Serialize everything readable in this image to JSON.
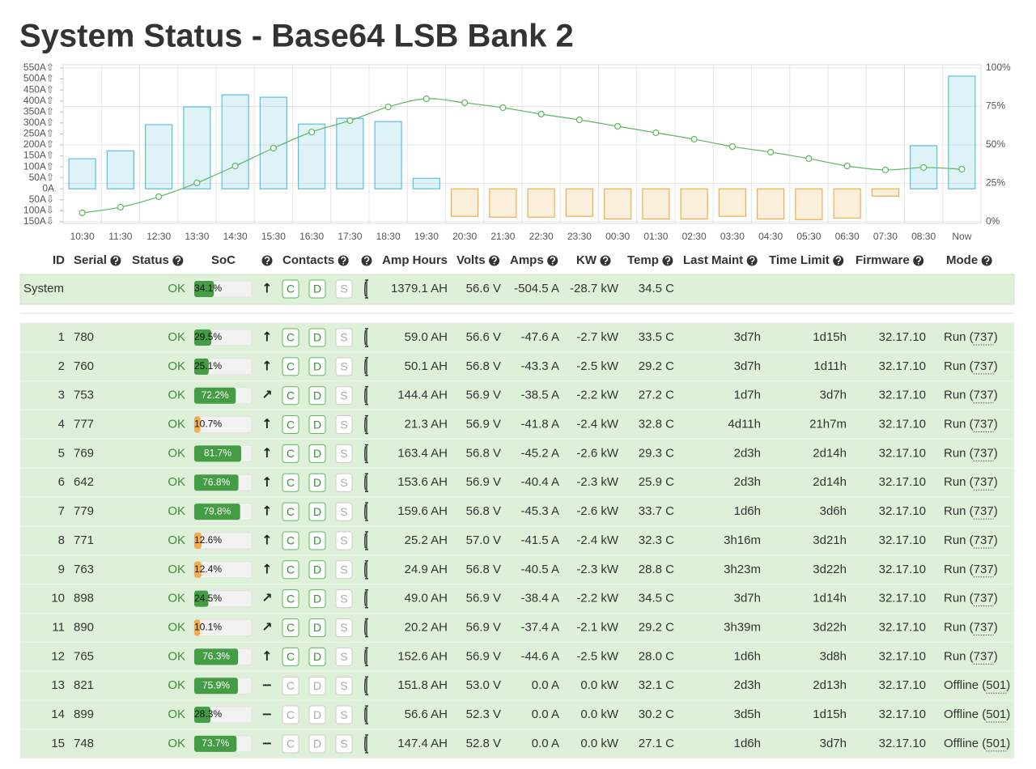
{
  "header": {
    "title": "System Status - Base64 LSB Bank 2"
  },
  "chart_data": {
    "type": "bar",
    "categories": [
      "10:30",
      "11:30",
      "12:30",
      "13:30",
      "14:30",
      "15:30",
      "16:30",
      "17:30",
      "18:30",
      "19:30",
      "20:30",
      "21:30",
      "22:30",
      "23:30",
      "00:30",
      "01:30",
      "02:30",
      "03:30",
      "04:30",
      "05:30",
      "06:30",
      "07:30",
      "08:30",
      "Now"
    ],
    "series": [
      {
        "type": "bar",
        "color": "#5bc0de",
        "negative_color": "#f0ad4e",
        "values": [
          137,
          173,
          292,
          373,
          428,
          417,
          295,
          321,
          306,
          48,
          -125,
          -129,
          -129,
          -125,
          -137,
          -137,
          -137,
          -125,
          -137,
          -140,
          -133,
          -33,
          196,
          513
        ]
      },
      {
        "type": "line",
        "axis": "y2",
        "color": "#5cb85c",
        "values": [
          5.8,
          9.5,
          16.3,
          25.3,
          36.3,
          47.9,
          58.4,
          65.8,
          74.7,
          80,
          77.4,
          74.2,
          70,
          66.3,
          62.1,
          57.9,
          53.7,
          48.9,
          45.3,
          41.1,
          36.3,
          33.7,
          35.3,
          34.2
        ]
      }
    ],
    "ylim": [
      -150,
      550
    ],
    "yticks": [
      {
        "value": 550,
        "label": "550A⇧"
      },
      {
        "value": 500,
        "label": "500A⇧"
      },
      {
        "value": 450,
        "label": "450A⇧"
      },
      {
        "value": 400,
        "label": "400A⇧"
      },
      {
        "value": 350,
        "label": "350A⇧"
      },
      {
        "value": 300,
        "label": "300A⇧"
      },
      {
        "value": 250,
        "label": "250A⇧"
      },
      {
        "value": 200,
        "label": "200A⇧"
      },
      {
        "value": 150,
        "label": "150A⇧"
      },
      {
        "value": 100,
        "label": "100A⇧"
      },
      {
        "value": 50,
        "label": "50A⇧"
      },
      {
        "value": 0,
        "label": "0A"
      },
      {
        "value": -50,
        "label": "50A⇩"
      },
      {
        "value": -100,
        "label": "100A⇩"
      },
      {
        "value": -150,
        "label": "150A⇩"
      }
    ],
    "y2lim": [
      0,
      100
    ],
    "y2ticks": [
      {
        "value": 0,
        "label": "0%"
      },
      {
        "value": 25,
        "label": "25%"
      },
      {
        "value": 50,
        "label": "50%"
      },
      {
        "value": 75,
        "label": "75%"
      },
      {
        "value": 100,
        "label": "100%"
      }
    ],
    "grid": true
  },
  "table": {
    "columns": [
      "ID",
      "Serial",
      "Status",
      "SoC",
      "Contacts",
      "Amp Hours",
      "Volts",
      "Amps",
      "KW",
      "Temp",
      "Last Maint",
      "Time Limit",
      "Firmware",
      "Mode"
    ],
    "contact_labels": [
      "C",
      "D",
      "S"
    ],
    "system": {
      "name": "System",
      "status": "OK",
      "soc": 34.1,
      "soc_label": "34.1%",
      "soc_color": "#449d44",
      "trend": "↑",
      "contacts_enabled": true,
      "amp_hours": "1379.1 AH",
      "volts": "56.6 V",
      "amps": "-504.5 A",
      "kw": "-28.7 kW",
      "temp": "34.5 C"
    },
    "rows": [
      {
        "id": "1",
        "serial": "780",
        "status": "OK",
        "soc": 29.5,
        "soc_label": "29.5%",
        "soc_color": "#449d44",
        "trend": "↑",
        "contacts_enabled": true,
        "amp_hours": "59.0 AH",
        "volts": "56.6 V",
        "amps": "-47.6 A",
        "kw": "-2.7 kW",
        "temp": "33.5 C",
        "last_maint": "3d7h",
        "time_limit": "1d15h",
        "firmware": "32.17.10",
        "mode": "Run (737)"
      },
      {
        "id": "2",
        "serial": "760",
        "status": "OK",
        "soc": 25.1,
        "soc_label": "25.1%",
        "soc_color": "#449d44",
        "trend": "↑",
        "contacts_enabled": true,
        "amp_hours": "50.1 AH",
        "volts": "56.8 V",
        "amps": "-43.3 A",
        "kw": "-2.5 kW",
        "temp": "29.2 C",
        "last_maint": "3d7h",
        "time_limit": "1d11h",
        "firmware": "32.17.10",
        "mode": "Run (737)"
      },
      {
        "id": "3",
        "serial": "753",
        "status": "OK",
        "soc": 72.2,
        "soc_label": "72.2%",
        "soc_color": "#449d44",
        "trend": "↗",
        "contacts_enabled": true,
        "amp_hours": "144.4 AH",
        "volts": "56.9 V",
        "amps": "-38.5 A",
        "kw": "-2.2 kW",
        "temp": "27.2 C",
        "last_maint": "1d7h",
        "time_limit": "3d7h",
        "firmware": "32.17.10",
        "mode": "Run (737)"
      },
      {
        "id": "4",
        "serial": "777",
        "status": "OK",
        "soc": 10.7,
        "soc_label": "10.7%",
        "soc_color": "#f0ad4e",
        "trend": "↑",
        "contacts_enabled": true,
        "amp_hours": "21.3 AH",
        "volts": "56.9 V",
        "amps": "-41.8 A",
        "kw": "-2.4 kW",
        "temp": "32.8 C",
        "last_maint": "4d11h",
        "time_limit": "21h7m",
        "firmware": "32.17.10",
        "mode": "Run (737)"
      },
      {
        "id": "5",
        "serial": "769",
        "status": "OK",
        "soc": 81.7,
        "soc_label": "81.7%",
        "soc_color": "#449d44",
        "trend": "↑",
        "contacts_enabled": true,
        "amp_hours": "163.4 AH",
        "volts": "56.8 V",
        "amps": "-45.2 A",
        "kw": "-2.6 kW",
        "temp": "29.3 C",
        "last_maint": "2d3h",
        "time_limit": "2d14h",
        "firmware": "32.17.10",
        "mode": "Run (737)"
      },
      {
        "id": "6",
        "serial": "642",
        "status": "OK",
        "soc": 76.8,
        "soc_label": "76.8%",
        "soc_color": "#449d44",
        "trend": "↑",
        "contacts_enabled": true,
        "amp_hours": "153.6 AH",
        "volts": "56.9 V",
        "amps": "-40.4 A",
        "kw": "-2.3 kW",
        "temp": "25.9 C",
        "last_maint": "2d3h",
        "time_limit": "2d14h",
        "firmware": "32.17.10",
        "mode": "Run (737)"
      },
      {
        "id": "7",
        "serial": "779",
        "status": "OK",
        "soc": 79.8,
        "soc_label": "79.8%",
        "soc_color": "#449d44",
        "trend": "↑",
        "contacts_enabled": true,
        "amp_hours": "159.6 AH",
        "volts": "56.8 V",
        "amps": "-45.3 A",
        "kw": "-2.6 kW",
        "temp": "33.7 C",
        "last_maint": "1d6h",
        "time_limit": "3d6h",
        "firmware": "32.17.10",
        "mode": "Run (737)"
      },
      {
        "id": "8",
        "serial": "771",
        "status": "OK",
        "soc": 12.6,
        "soc_label": "12.6%",
        "soc_color": "#f0ad4e",
        "trend": "↑",
        "contacts_enabled": true,
        "amp_hours": "25.2 AH",
        "volts": "57.0 V",
        "amps": "-41.5 A",
        "kw": "-2.4 kW",
        "temp": "32.3 C",
        "last_maint": "3h16m",
        "time_limit": "3d21h",
        "firmware": "32.17.10",
        "mode": "Run (737)"
      },
      {
        "id": "9",
        "serial": "763",
        "status": "OK",
        "soc": 12.4,
        "soc_label": "12.4%",
        "soc_color": "#f0ad4e",
        "trend": "↑",
        "contacts_enabled": true,
        "amp_hours": "24.9 AH",
        "volts": "56.8 V",
        "amps": "-40.5 A",
        "kw": "-2.3 kW",
        "temp": "28.8 C",
        "last_maint": "3h23m",
        "time_limit": "3d22h",
        "firmware": "32.17.10",
        "mode": "Run (737)"
      },
      {
        "id": "10",
        "serial": "898",
        "status": "OK",
        "soc": 24.5,
        "soc_label": "24.5%",
        "soc_color": "#449d44",
        "trend": "↗",
        "contacts_enabled": true,
        "amp_hours": "49.0 AH",
        "volts": "56.9 V",
        "amps": "-38.4 A",
        "kw": "-2.2 kW",
        "temp": "34.5 C",
        "last_maint": "3d7h",
        "time_limit": "1d14h",
        "firmware": "32.17.10",
        "mode": "Run (737)"
      },
      {
        "id": "11",
        "serial": "890",
        "status": "OK",
        "soc": 10.1,
        "soc_label": "10.1%",
        "soc_color": "#f0ad4e",
        "trend": "↗",
        "contacts_enabled": true,
        "amp_hours": "20.2 AH",
        "volts": "56.9 V",
        "amps": "-37.4 A",
        "kw": "-2.1 kW",
        "temp": "29.2 C",
        "last_maint": "3h39m",
        "time_limit": "3d22h",
        "firmware": "32.17.10",
        "mode": "Run (737)"
      },
      {
        "id": "12",
        "serial": "765",
        "status": "OK",
        "soc": 76.3,
        "soc_label": "76.3%",
        "soc_color": "#449d44",
        "trend": "↑",
        "contacts_enabled": true,
        "amp_hours": "152.6 AH",
        "volts": "56.9 V",
        "amps": "-44.6 A",
        "kw": "-2.5 kW",
        "temp": "28.0 C",
        "last_maint": "1d6h",
        "time_limit": "3d8h",
        "firmware": "32.17.10",
        "mode": "Run (737)"
      },
      {
        "id": "13",
        "serial": "821",
        "status": "OK",
        "soc": 75.9,
        "soc_label": "75.9%",
        "soc_color": "#449d44",
        "trend": "−",
        "contacts_enabled": false,
        "amp_hours": "151.8 AH",
        "volts": "53.0 V",
        "amps": "0.0 A",
        "kw": "0.0 kW",
        "temp": "32.1 C",
        "last_maint": "2d3h",
        "time_limit": "2d13h",
        "firmware": "32.17.10",
        "mode": "Offline (501)"
      },
      {
        "id": "14",
        "serial": "899",
        "status": "OK",
        "soc": 28.3,
        "soc_label": "28.3%",
        "soc_color": "#449d44",
        "trend": "−",
        "contacts_enabled": false,
        "amp_hours": "56.6 AH",
        "volts": "52.3 V",
        "amps": "0.0 A",
        "kw": "0.0 kW",
        "temp": "30.2 C",
        "last_maint": "3d5h",
        "time_limit": "1d15h",
        "firmware": "32.17.10",
        "mode": "Offline (501)"
      },
      {
        "id": "15",
        "serial": "748",
        "status": "OK",
        "soc": 73.7,
        "soc_label": "73.7%",
        "soc_color": "#449d44",
        "trend": "−",
        "contacts_enabled": false,
        "amp_hours": "147.4 AH",
        "volts": "52.8 V",
        "amps": "0.0 A",
        "kw": "0.0 kW",
        "temp": "27.1 C",
        "last_maint": "1d6h",
        "time_limit": "3d7h",
        "firmware": "32.17.10",
        "mode": "Offline (501)"
      }
    ]
  }
}
